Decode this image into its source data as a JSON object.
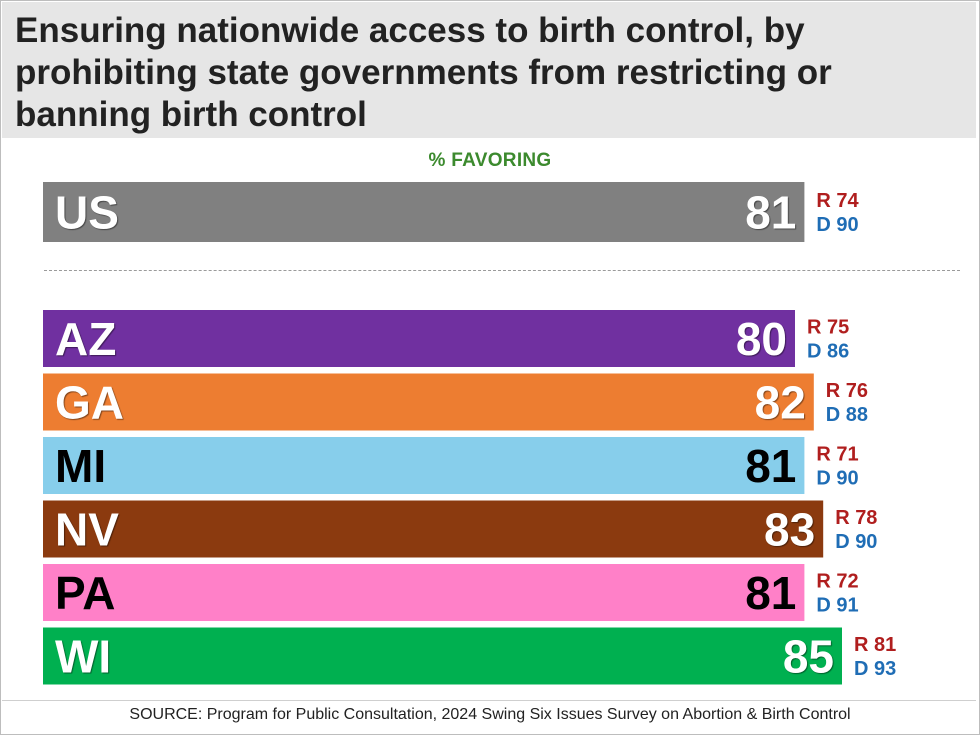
{
  "chart_data": {
    "type": "bar",
    "orientation": "horizontal",
    "title": "Ensuring nationwide access to birth control, by prohibiting state governments from restricting or banning birth control",
    "subtitle": "% FAVORING",
    "source": "SOURCE: Program for Public Consultation, 2024 Swing Six Issues Survey on Abortion & Birth Control",
    "xlim": [
      0,
      100
    ],
    "national": {
      "category": "US",
      "value": 81,
      "r_label": "R 74",
      "d_label": "D 90",
      "color": "#808080",
      "label_color": "#ffffff"
    },
    "categories": [
      "AZ",
      "GA",
      "MI",
      "NV",
      "PA",
      "WI"
    ],
    "values": [
      80,
      82,
      81,
      83,
      81,
      85
    ],
    "r_labels": [
      "R 75",
      "R 76",
      "R 71",
      "R 78",
      "R 72",
      "R 81"
    ],
    "d_labels": [
      "D 86",
      "D 88",
      "D 90",
      "D 90",
      "D 91",
      "D 93"
    ],
    "colors": [
      "#7030A0",
      "#ED7D31",
      "#87CEEB",
      "#8B3A0F",
      "#FF80C8",
      "#00B050"
    ],
    "label_colors": [
      "#ffffff",
      "#ffffff",
      "#000000",
      "#ffffff",
      "#000000",
      "#ffffff"
    ],
    "r_color": "#B01E1E",
    "d_color": "#1F6DB5"
  }
}
